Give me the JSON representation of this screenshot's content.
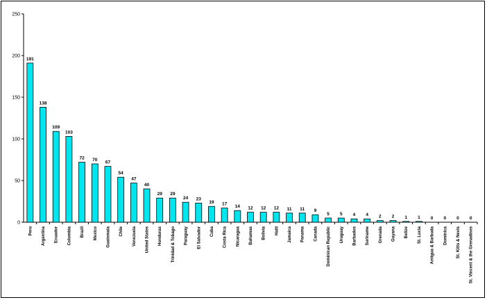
{
  "chart_data": {
    "type": "bar",
    "title": "",
    "xlabel": "",
    "ylabel": "",
    "ylim": [
      0,
      250
    ],
    "yticks": [
      0,
      50,
      100,
      150,
      200,
      250
    ],
    "grid": false,
    "legend": "none",
    "bar_color": "#00e5ee",
    "categories": [
      "Peru",
      "Argentina",
      "Ecuador",
      "Colombia",
      "Brazil",
      "Mexico",
      "Guatemala",
      "Chile",
      "Venezuela",
      "United States",
      "Honduras",
      "Trinidad & Tobago",
      "Paraguay",
      "El Salvador",
      "Cuba",
      "Costa Rica",
      "Nicaragua",
      "Bahamas",
      "Bolivia",
      "Haiti",
      "Jamaica",
      "Panama",
      "Canada",
      "Dominican Republic",
      "Uruguay",
      "Barbados",
      "Suriname",
      "Grenada",
      "Guyana",
      "Belize",
      "St. Lucia",
      "Antigua & Barbuda",
      "Dominica",
      "St. Kitts & Nevis",
      "St. Vincent & the Grenadines"
    ],
    "values": [
      191,
      138,
      109,
      103,
      72,
      70,
      67,
      54,
      47,
      40,
      29,
      29,
      24,
      23,
      19,
      17,
      14,
      12,
      12,
      12,
      11,
      11,
      9,
      5,
      5,
      4,
      4,
      2,
      2,
      1,
      1,
      0,
      0,
      0,
      0
    ]
  }
}
